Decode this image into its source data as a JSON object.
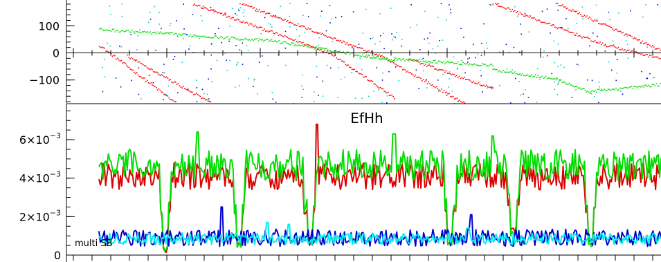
{
  "chart_data": [
    {
      "type": "scatter",
      "panel": "phase",
      "title": "",
      "xlabel": "",
      "ylabel": "",
      "ylim": [
        -185,
        185
      ],
      "xlim": [
        0,
        800
      ],
      "ytick_labels": [
        "100",
        "0",
        "−100"
      ],
      "yticks": [
        100,
        0,
        -100
      ],
      "grid": false,
      "series": [
        {
          "color": "#ff0000",
          "segments": [
            {
              "x": [
                0,
                110
              ],
              "y": [
                30,
                -185
              ]
            },
            {
              "x": [
                130,
                330
              ],
              "y": [
                185,
                0
              ]
            },
            {
              "x": [
                330,
                420
              ],
              "y": [
                0,
                -165
              ]
            },
            {
              "x": [
                200,
                400
              ],
              "y": [
                185,
                -10
              ]
            },
            {
              "x": [
                400,
                520
              ],
              "y": [
                -10,
                -185
              ]
            },
            {
              "x": [
                560,
                720
              ],
              "y": [
                185,
                30
              ]
            },
            {
              "x": [
                650,
                800
              ],
              "y": [
                185,
                10
              ]
            },
            {
              "x": [
                720,
                800
              ],
              "y": [
                30,
                -20
              ]
            },
            {
              "x": [
                40,
                160
              ],
              "y": [
                -10,
                -185
              ]
            },
            {
              "x": [
                440,
                560
              ],
              "y": [
                -20,
                -130
              ]
            }
          ]
        },
        {
          "color": "#00dd00",
          "segments": [
            {
              "x": [
                0,
                100
              ],
              "y": [
                88,
                72
              ]
            },
            {
              "x": [
                100,
                250
              ],
              "y": [
                72,
                45
              ]
            },
            {
              "x": [
                250,
                380
              ],
              "y": [
                45,
                -10
              ]
            },
            {
              "x": [
                380,
                420
              ],
              "y": [
                -10,
                -25
              ]
            },
            {
              "x": [
                420,
                560
              ],
              "y": [
                -20,
                -45
              ]
            },
            {
              "x": [
                560,
                650
              ],
              "y": [
                -60,
                -95
              ]
            },
            {
              "x": [
                650,
                700
              ],
              "y": [
                -95,
                -145
              ]
            },
            {
              "x": [
                700,
                800
              ],
              "y": [
                -140,
                -115
              ]
            }
          ]
        },
        {
          "color": "#0000cc",
          "scatter_noise": true,
          "count": 160
        },
        {
          "color": "#00cccc",
          "scatter_noise": true,
          "count": 220
        }
      ]
    },
    {
      "type": "line",
      "panel": "magnitude",
      "title": "EfHh",
      "xlabel": "",
      "ylabel": "",
      "ylim": [
        0,
        0.0078
      ],
      "xlim": [
        0,
        800
      ],
      "ytick_labels": [
        {
          "base": "6×10",
          "exp": "−3"
        },
        {
          "base": "4×10",
          "exp": "−3"
        },
        {
          "base": "2×10",
          "exp": "−3"
        },
        {
          "base": "0",
          "exp": ""
        }
      ],
      "yticks": [
        0.006,
        0.004,
        0.002,
        0
      ],
      "corner_label": "multi SB",
      "grid": false,
      "series": [
        {
          "color": "#dd0000",
          "level": 0.0041,
          "noise": 0.0007,
          "dips": [
            [
              95,
              0.0001
            ],
            [
              200,
              0.0005
            ],
            [
              300,
              0.0008
            ],
            [
              500,
              0.0006
            ],
            [
              590,
              0.0012
            ],
            [
              700,
              0.0006
            ]
          ],
          "peaks": [
            [
              310,
              0.0068
            ]
          ]
        },
        {
          "color": "#00dd00",
          "level": 0.0047,
          "noise": 0.0008,
          "dips": [
            [
              95,
              0.0002
            ],
            [
              200,
              0.0004
            ],
            [
              300,
              0.0005
            ],
            [
              500,
              0.0005
            ],
            [
              590,
              0.001
            ],
            [
              700,
              0.0004
            ]
          ],
          "peaks": [
            [
              140,
              0.0064
            ],
            [
              420,
              0.0063
            ],
            [
              560,
              0.0062
            ]
          ]
        },
        {
          "color": "#0000cc",
          "level": 0.0009,
          "noise": 0.00045,
          "peaks": [
            [
              175,
              0.0025
            ],
            [
              530,
              0.0021
            ]
          ]
        },
        {
          "color": "#00eeee",
          "level": 0.00085,
          "noise": 0.0003,
          "peaks": [
            [
              240,
              0.0017
            ],
            [
              270,
              0.0016
            ],
            [
              525,
              0.0014
            ]
          ]
        }
      ]
    }
  ],
  "colors": {
    "red": "#dd0000",
    "green": "#00dd00",
    "blue": "#0000cc",
    "cyan": "#00eeee",
    "axis": "#000000"
  }
}
